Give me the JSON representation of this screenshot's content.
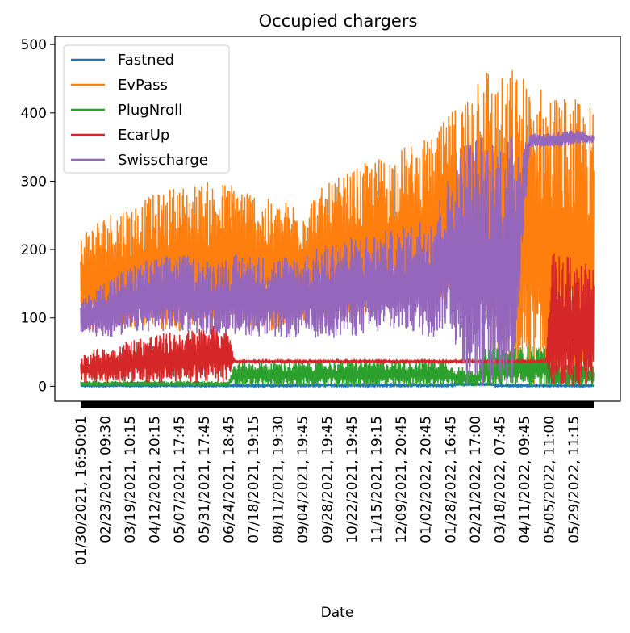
{
  "chart_data": {
    "type": "line",
    "title": "Occupied chargers",
    "xlabel": "Date",
    "ylabel": "",
    "ylim": [
      -22,
      512
    ],
    "yticks": [
      0,
      100,
      200,
      300,
      400,
      500
    ],
    "xlim": [
      0,
      16
    ],
    "xtick_labels": [
      "01/30/2021, 16:50:01",
      "02/23/2021, 09:30",
      "03/19/2021, 10:15",
      "04/12/2021, 20:15",
      "05/07/2021, 17:45",
      "05/31/2021, 17:45",
      "06/24/2021, 18:45",
      "07/18/2021, 19:15",
      "08/11/2021, 19:30",
      "09/04/2021, 19:45",
      "09/28/2021, 19:45",
      "10/22/2021, 19:45",
      "11/15/2021, 19:15",
      "12/09/2021, 20:45",
      "01/02/2022, 20:45",
      "01/28/2022, 16:45",
      "02/21/2022, 17:00",
      "03/18/2022, 07:45",
      "04/11/2022, 09:45",
      "05/05/2022, 11:00",
      "05/29/2022, 11:15"
    ],
    "legend_position": "top-left",
    "grid": false,
    "series": [
      {
        "name": "Fastned",
        "color": "#1f77b4",
        "x": [
          0,
          6.5,
          7.0,
          11.6,
          11.8,
          12.8,
          13.0,
          16
        ],
        "low": [
          0,
          0,
          0,
          0,
          0,
          0,
          0,
          0
        ],
        "high": [
          2,
          2,
          3,
          3,
          6,
          6,
          2,
          2
        ]
      },
      {
        "name": "EvPass",
        "color": "#ff7f0e",
        "x": [
          0,
          1.0,
          2.0,
          3.0,
          4.0,
          5.0,
          6.0,
          7.0,
          8.0,
          9.0,
          10.0,
          11.0,
          11.5,
          12.0,
          12.5,
          13.0,
          13.5,
          14.0,
          14.5,
          15.0,
          15.5,
          16
        ],
        "low": [
          80,
          75,
          80,
          78,
          80,
          85,
          80,
          90,
          95,
          100,
          105,
          110,
          120,
          80,
          130,
          0,
          0,
          0,
          0,
          0,
          0,
          0
        ],
        "high": [
          230,
          260,
          275,
          295,
          300,
          300,
          270,
          275,
          305,
          330,
          350,
          365,
          400,
          430,
          490,
          450,
          470,
          450,
          440,
          430,
          420,
          410
        ]
      },
      {
        "name": "PlugNroll",
        "color": "#2ca02c",
        "x": [
          0,
          4.6,
          4.8,
          11.4,
          11.6,
          12.4,
          12.6,
          14.5,
          14.7,
          16
        ],
        "low": [
          0,
          0,
          0,
          0,
          0,
          0,
          0,
          0,
          0,
          0
        ],
        "high": [
          8,
          8,
          35,
          40,
          30,
          25,
          55,
          60,
          32,
          32
        ]
      },
      {
        "name": "EcarUp",
        "color": "#d62728",
        "x": [
          0,
          1.0,
          2.0,
          3.0,
          4.0,
          4.6,
          4.8,
          14.5,
          14.7,
          15.6,
          16
        ],
        "low": [
          5,
          5,
          5,
          5,
          5,
          5,
          35,
          35,
          0,
          0,
          0
        ],
        "high": [
          50,
          60,
          75,
          80,
          90,
          90,
          38,
          38,
          195,
          190,
          170
        ]
      },
      {
        "name": "Swisscharge",
        "color": "#9467bd",
        "x": [
          0,
          1.0,
          2.0,
          3.0,
          4.0,
          5.0,
          6.0,
          7.0,
          8.0,
          9.0,
          10.0,
          11.0,
          11.5,
          12.0,
          12.5,
          13.0,
          13.5,
          14.0,
          14.5,
          15.0,
          15.5,
          16
        ],
        "low": [
          75,
          70,
          80,
          80,
          75,
          75,
          70,
          70,
          70,
          75,
          80,
          70,
          90,
          0,
          0,
          0,
          0,
          350,
          350,
          350,
          355,
          355
        ],
        "high": [
          125,
          165,
          185,
          195,
          185,
          195,
          190,
          195,
          215,
          225,
          230,
          260,
          310,
          370,
          370,
          370,
          370,
          370,
          372,
          374,
          375,
          370
        ]
      }
    ]
  }
}
